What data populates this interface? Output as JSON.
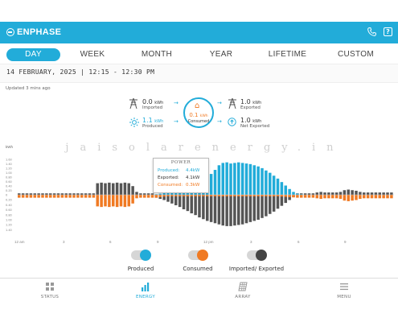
{
  "app": {
    "brand": "ENPHASE",
    "icons": {
      "phone": "phone-icon",
      "help": "help-icon"
    }
  },
  "tabs": [
    "DAY",
    "WEEK",
    "MONTH",
    "YEAR",
    "LIFETIME",
    "CUSTOM"
  ],
  "active_tab": "DAY",
  "date_range": "14 FEBRUARY, 2025 | 12:15 - 12:30 PM",
  "updated": "Updated 3 mins ago",
  "flow": {
    "imported": {
      "value": "0.0",
      "unit": "kWh",
      "label": "Imported"
    },
    "produced": {
      "value": "1.1",
      "unit": "kWh",
      "label": "Produced"
    },
    "consumed": {
      "value": "0.1",
      "unit": "kWh",
      "label": "Consumed"
    },
    "exported": {
      "value": "1.0",
      "unit": "kWh",
      "label": "Exported"
    },
    "net_exported": {
      "value": "1.0",
      "unit": "kWh",
      "label": "Net Exported"
    }
  },
  "watermark": "jaisolarenergy.in",
  "tooltip": {
    "title": "POWER",
    "rows": [
      {
        "label": "Produced:",
        "value": "4.4kW",
        "color": "#22acd9"
      },
      {
        "label": "Exported:",
        "value": "4.1kW",
        "color": "#333333"
      },
      {
        "label": "Consumed:",
        "value": "0.3kW",
        "color": "#f07a23"
      }
    ]
  },
  "legend": [
    {
      "label": "Produced",
      "color": "#22acd9"
    },
    {
      "label": "Consumed",
      "color": "#f07a23"
    },
    {
      "label": "Imported/ Exported",
      "color": "#444444"
    }
  ],
  "nav": [
    {
      "label": "STATUS",
      "icon": "grid-icon"
    },
    {
      "label": "ENERGY",
      "icon": "bar-chart-icon"
    },
    {
      "label": "ARRAY",
      "icon": "solar-panel-icon"
    },
    {
      "label": "MENU",
      "icon": "menu-icon"
    }
  ],
  "active_nav": "ENERGY",
  "colors": {
    "accent": "#22acd9",
    "consumed": "#f07a23",
    "exported": "#555555"
  },
  "chart_data": {
    "type": "bar",
    "ylabel": "kWh",
    "yticks_pos": [
      "1.60",
      "1.40",
      "1.20",
      "1.00",
      "0.80",
      "0.60",
      "0.40",
      "0.20",
      "0"
    ],
    "yticks_neg": [
      "0.20",
      "0.40",
      "0.60",
      "0.80",
      "1.00",
      "1.20",
      "1.40"
    ],
    "xticks": [
      "12 am",
      "3",
      "6",
      "9",
      "12 pm",
      "3",
      "6",
      "9"
    ],
    "ylim": [
      -1.5,
      1.5
    ],
    "grid": false,
    "series": [
      {
        "name": "Produced",
        "values": [
          0,
          0,
          0,
          0,
          0,
          0,
          0,
          0,
          0,
          0,
          0,
          0,
          0,
          0,
          0,
          0,
          0,
          0,
          0,
          0,
          0,
          0,
          0,
          0,
          0,
          0,
          0,
          0,
          0,
          0,
          0,
          0,
          0,
          0,
          0,
          0.02,
          0.04,
          0.06,
          0.08,
          0.12,
          0.18,
          0.22,
          0.28,
          0.32,
          0.38,
          0.42,
          0.48,
          0.52,
          0.6,
          0.72,
          0.86,
          1.02,
          1.1,
          1.12,
          1.08,
          1.1,
          1.12,
          1.1,
          1.08,
          1.06,
          1.02,
          0.98,
          0.92,
          0.84,
          0.76,
          0.66,
          0.56,
          0.44,
          0.32,
          0.2,
          0.1,
          0.04,
          0.02,
          0,
          0,
          0,
          0,
          0,
          0,
          0,
          0,
          0,
          0,
          0,
          0,
          0,
          0,
          0,
          0,
          0,
          0,
          0,
          0,
          0,
          0,
          0
        ]
      },
      {
        "name": "Consumed",
        "values": [
          -0.1,
          -0.1,
          -0.1,
          -0.1,
          -0.1,
          -0.1,
          -0.1,
          -0.1,
          -0.1,
          -0.1,
          -0.1,
          -0.1,
          -0.1,
          -0.1,
          -0.1,
          -0.1,
          -0.1,
          -0.1,
          -0.1,
          -0.1,
          -0.4,
          -0.42,
          -0.4,
          -0.42,
          -0.4,
          -0.42,
          -0.4,
          -0.42,
          -0.4,
          -0.3,
          -0.12,
          -0.1,
          -0.1,
          -0.1,
          -0.1,
          -0.1,
          -0.08,
          -0.06,
          -0.05,
          -0.05,
          -0.05,
          -0.05,
          -0.05,
          -0.05,
          -0.05,
          -0.05,
          -0.05,
          -0.05,
          -0.05,
          -0.05,
          -0.05,
          -0.05,
          -0.05,
          -0.05,
          -0.05,
          -0.05,
          -0.05,
          -0.05,
          -0.05,
          -0.05,
          -0.05,
          -0.05,
          -0.05,
          -0.05,
          -0.05,
          -0.05,
          -0.05,
          -0.06,
          -0.07,
          -0.08,
          -0.09,
          -0.1,
          -0.1,
          -0.1,
          -0.1,
          -0.1,
          -0.12,
          -0.14,
          -0.12,
          -0.12,
          -0.12,
          -0.12,
          -0.14,
          -0.2,
          -0.22,
          -0.2,
          -0.18,
          -0.14,
          -0.12,
          -0.12,
          -0.12,
          -0.12,
          -0.12,
          -0.12,
          -0.12,
          -0.12
        ]
      },
      {
        "name": "Imported/Exported",
        "values": [
          0.05,
          0.05,
          0.05,
          0.05,
          0.05,
          0.05,
          0.05,
          0.05,
          0.05,
          0.05,
          0.05,
          0.05,
          0.05,
          0.05,
          0.05,
          0.05,
          0.05,
          0.05,
          0.05,
          0.05,
          0.4,
          0.42,
          0.4,
          0.42,
          0.4,
          0.42,
          0.4,
          0.42,
          0.4,
          0.3,
          0.1,
          0.05,
          0.05,
          0.05,
          0.05,
          -0.1,
          -0.14,
          -0.18,
          -0.24,
          -0.3,
          -0.36,
          -0.42,
          -0.5,
          -0.56,
          -0.64,
          -0.7,
          -0.78,
          -0.84,
          -0.9,
          -0.94,
          -0.98,
          -1.02,
          -1.06,
          -1.08,
          -1.08,
          -1.06,
          -1.04,
          -1.02,
          -0.98,
          -0.94,
          -0.9,
          -0.86,
          -0.8,
          -0.74,
          -0.66,
          -0.58,
          -0.48,
          -0.38,
          -0.28,
          -0.18,
          -0.08,
          0.05,
          0.05,
          0.05,
          0.05,
          0.05,
          0.08,
          0.1,
          0.08,
          0.08,
          0.08,
          0.08,
          0.1,
          0.16,
          0.18,
          0.16,
          0.14,
          0.1,
          0.08,
          0.08,
          0.08,
          0.08,
          0.08,
          0.08,
          0.08,
          0.08
        ]
      }
    ]
  }
}
